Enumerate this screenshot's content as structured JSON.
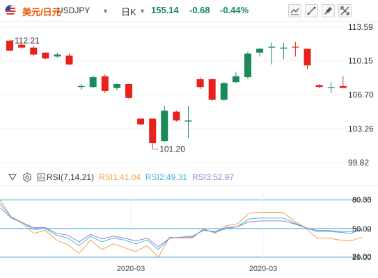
{
  "header": {
    "symbol_name": "美元/日元",
    "symbol_code": "USDJPY",
    "period": "日K",
    "last_price": "155.14",
    "change": "-0.68",
    "change_pct": "-0.44%",
    "price_color": "#1a8a5a",
    "symbol_color": "#e8590c",
    "tools": [
      "chart-line-icon",
      "trend-line-icon",
      "brush-icon",
      "expand-icon"
    ]
  },
  "colors": {
    "up": "#1a8a5a",
    "down": "#e8221b",
    "rsi1": "#f0a050",
    "rsi2": "#3fb8d8",
    "rsi3": "#9b7fd4",
    "ref_line": "#4aa6d8"
  },
  "chart_data": [
    {
      "type": "candlestick",
      "yticks": [
        "113.59",
        "110.15",
        "106.70",
        "103.26",
        "99.82"
      ],
      "ylim": [
        99.82,
        113.59
      ],
      "labels": {
        "high": "112.21",
        "low": "101.20"
      },
      "candles": [
        {
          "o": 112.2,
          "h": 112.21,
          "l": 111.2,
          "c": 111.2
        },
        {
          "o": 111.8,
          "h": 111.9,
          "l": 111.4,
          "c": 111.5
        },
        {
          "o": 111.5,
          "h": 111.7,
          "l": 110.6,
          "c": 110.8
        },
        {
          "o": 111.0,
          "h": 111.0,
          "l": 110.3,
          "c": 110.4
        },
        {
          "o": 110.6,
          "h": 111.0,
          "l": 110.5,
          "c": 110.8
        },
        {
          "o": 110.7,
          "h": 110.9,
          "l": 109.7,
          "c": 109.8
        },
        {
          "o": 107.5,
          "h": 107.8,
          "l": 107.2,
          "c": 107.6
        },
        {
          "o": 107.5,
          "h": 108.7,
          "l": 107.4,
          "c": 108.5
        },
        {
          "o": 108.6,
          "h": 108.8,
          "l": 106.9,
          "c": 107.1
        },
        {
          "o": 107.4,
          "h": 107.9,
          "l": 107.2,
          "c": 107.8
        },
        {
          "o": 107.8,
          "h": 107.8,
          "l": 106.3,
          "c": 106.4
        },
        {
          "o": 104.3,
          "h": 104.3,
          "l": 103.6,
          "c": 103.7
        },
        {
          "o": 104.3,
          "h": 104.3,
          "l": 101.2,
          "c": 101.8
        },
        {
          "o": 102.0,
          "h": 105.6,
          "l": 101.9,
          "c": 105.1
        },
        {
          "o": 105.0,
          "h": 105.1,
          "l": 104.0,
          "c": 104.1
        },
        {
          "o": 104.0,
          "h": 105.6,
          "l": 102.3,
          "c": 104.1
        },
        {
          "o": 108.3,
          "h": 108.5,
          "l": 107.3,
          "c": 107.5
        },
        {
          "o": 108.3,
          "h": 108.4,
          "l": 106.1,
          "c": 106.2
        },
        {
          "o": 106.2,
          "h": 108.0,
          "l": 106.1,
          "c": 107.9
        },
        {
          "o": 108.0,
          "h": 109.0,
          "l": 107.9,
          "c": 108.6
        },
        {
          "o": 108.5,
          "h": 111.1,
          "l": 108.3,
          "c": 110.9
        },
        {
          "o": 111.0,
          "h": 111.5,
          "l": 110.6,
          "c": 111.4
        },
        {
          "o": 111.5,
          "h": 112.0,
          "l": 109.8,
          "c": 111.6
        },
        {
          "o": 111.5,
          "h": 112.0,
          "l": 110.3,
          "c": 111.5
        },
        {
          "o": 111.6,
          "h": 112.1,
          "l": 110.6,
          "c": 111.5
        },
        {
          "o": 111.4,
          "h": 111.4,
          "l": 109.3,
          "c": 109.7
        },
        {
          "o": 107.7,
          "h": 107.8,
          "l": 107.4,
          "c": 107.5
        },
        {
          "o": 107.5,
          "h": 108.0,
          "l": 106.9,
          "c": 107.5
        },
        {
          "o": 107.6,
          "h": 108.6,
          "l": 107.4,
          "c": 107.4
        }
      ]
    },
    {
      "type": "line",
      "indicator": "RSI",
      "params": "RSI(7,14,21)",
      "ylim": [
        20,
        90
      ],
      "yticks": [
        "80.35",
        "80.00",
        "50.02",
        "50.00",
        "21.00",
        "20.00"
      ],
      "ref_lines": [
        80,
        50,
        20
      ],
      "xticks": [
        "2020-03",
        "2020-03"
      ],
      "legend": [
        {
          "label": "RSI1:41.04",
          "value": 41.04
        },
        {
          "label": "RSI2:49.31",
          "value": 49.31
        },
        {
          "label": "RSI3:52.97",
          "value": 52.97
        }
      ],
      "series": [
        {
          "name": "RSI1",
          "values": [
            80,
            62,
            55,
            45,
            48,
            38,
            33,
            24,
            38,
            28,
            34,
            30,
            26,
            32,
            20,
            41,
            40,
            40,
            50,
            45,
            53,
            55,
            66,
            67,
            67,
            67,
            58,
            51,
            40,
            40,
            38,
            37,
            41
          ]
        },
        {
          "name": "RSI2",
          "values": [
            76,
            62,
            56,
            49,
            50,
            43,
            40,
            32,
            42,
            36,
            40,
            38,
            34,
            38,
            28,
            40,
            41,
            41,
            49,
            46,
            50,
            52,
            60,
            61,
            61,
            61,
            56,
            51,
            47,
            47,
            46,
            45,
            49
          ]
        },
        {
          "name": "RSI3",
          "values": [
            72,
            61,
            56,
            51,
            51,
            45,
            43,
            36,
            44,
            39,
            42,
            40,
            37,
            40,
            31,
            40,
            41,
            42,
            48,
            47,
            51,
            52,
            57,
            58,
            58,
            58,
            55,
            51,
            48,
            48,
            47,
            47,
            48
          ]
        }
      ]
    }
  ]
}
